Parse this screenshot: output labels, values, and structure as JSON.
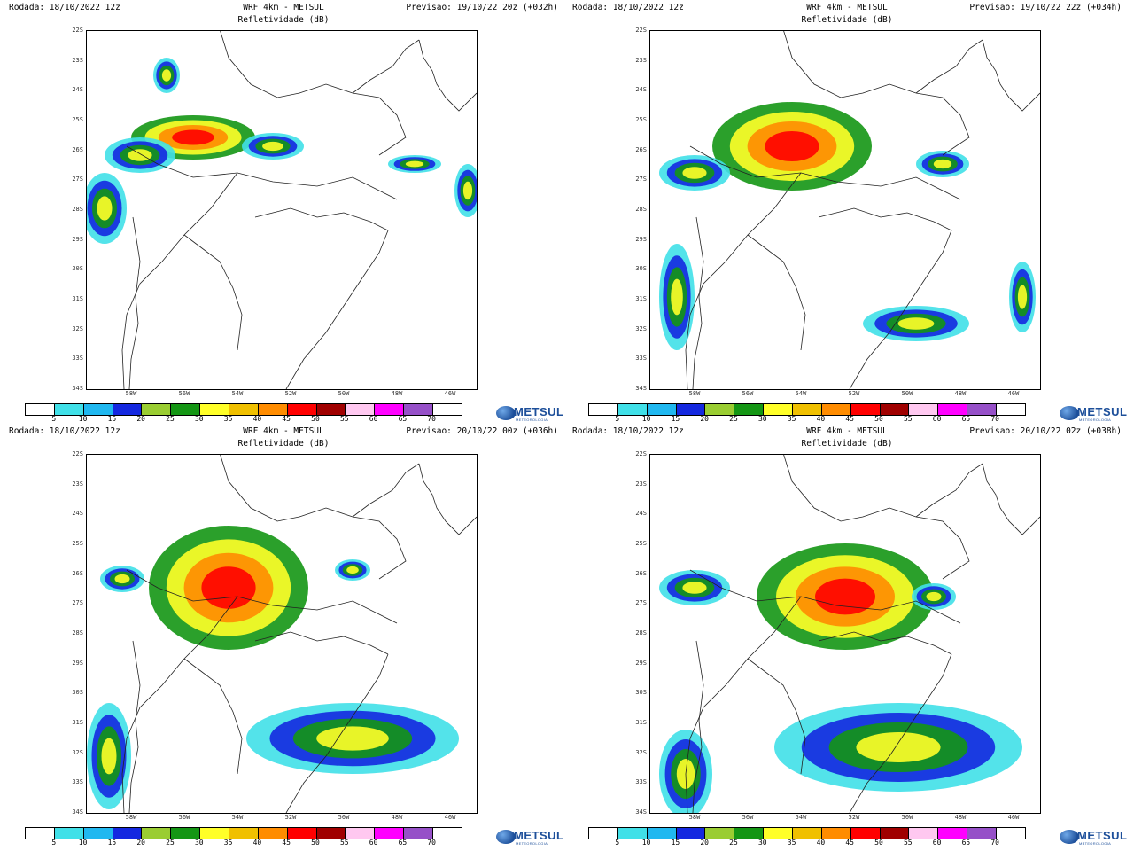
{
  "common": {
    "title": "WRF 4km - METSUL",
    "subtitle": "Refletividade (dB)",
    "rodada": "Rodada: 18/10/2022 12z",
    "logo_text": "METSUL",
    "logo_sub": "METEOROLOGIA"
  },
  "lat_labels": [
    "22S",
    "23S",
    "24S",
    "25S",
    "26S",
    "27S",
    "28S",
    "29S",
    "30S",
    "31S",
    "32S",
    "33S",
    "34S"
  ],
  "lon_labels": [
    "58W",
    "56W",
    "54W",
    "52W",
    "50W",
    "48W",
    "46W"
  ],
  "colorbar": {
    "ticks": [
      "5",
      "10",
      "15",
      "20",
      "25",
      "30",
      "35",
      "40",
      "45",
      "50",
      "55",
      "60",
      "65",
      "70"
    ],
    "colors": [
      "#ffffff",
      "#40e0e8",
      "#20b8f0",
      "#1428e0",
      "#9acd32",
      "#149614",
      "#ffff28",
      "#f0c000",
      "#ff8c00",
      "#ff0000",
      "#a00000",
      "#ffc8f0",
      "#ff00ff",
      "#9650c8",
      "#ffffff"
    ]
  },
  "panels": [
    {
      "id": "p1",
      "previsao": "Previsao: 19/10/22 20z (+032h)"
    },
    {
      "id": "p2",
      "previsao": "Previsao: 19/10/22 22z (+034h)"
    },
    {
      "id": "p3",
      "previsao": "Previsao: 20/10/22 00z (+036h)"
    },
    {
      "id": "p4",
      "previsao": "Previsao: 20/10/22 02z (+038h)"
    }
  ]
}
